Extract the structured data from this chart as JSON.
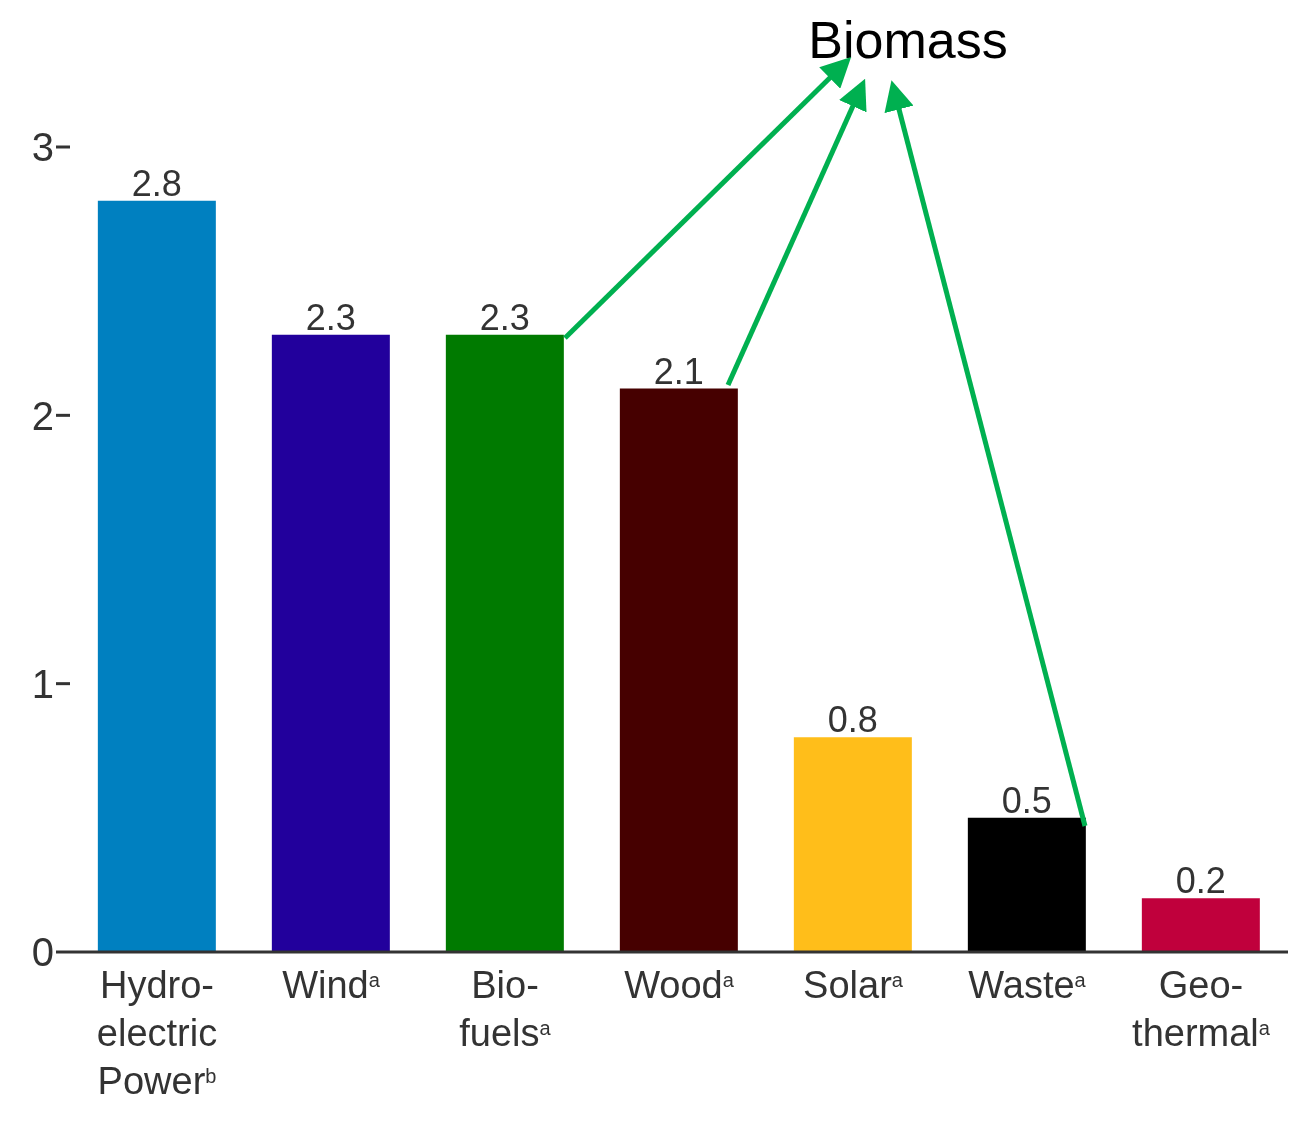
{
  "chart_data": {
    "type": "bar",
    "categories": [
      "Hydro-electric Power$^{b}$",
      "Wind$^{a}$",
      "Bio-fuels$^{a}$",
      "Wood$^{a}$",
      "Solar$^{a}$",
      "Waste$^{a}$",
      "Geo-thermal$^{a}$"
    ],
    "values": [
      2.8,
      2.3,
      2.3,
      2.1,
      0.8,
      0.5,
      0.2
    ],
    "colors": [
      "#0080c0",
      "#22009c",
      "#007a00",
      "#460000",
      "#ffbe1a",
      "#000000",
      "#c0003c"
    ],
    "ylim": [
      0,
      3
    ],
    "yticks": [
      0,
      1,
      2,
      3
    ],
    "data_labels": true,
    "grid": false,
    "legend": false,
    "annotations": [
      "Biomass"
    ]
  }
}
